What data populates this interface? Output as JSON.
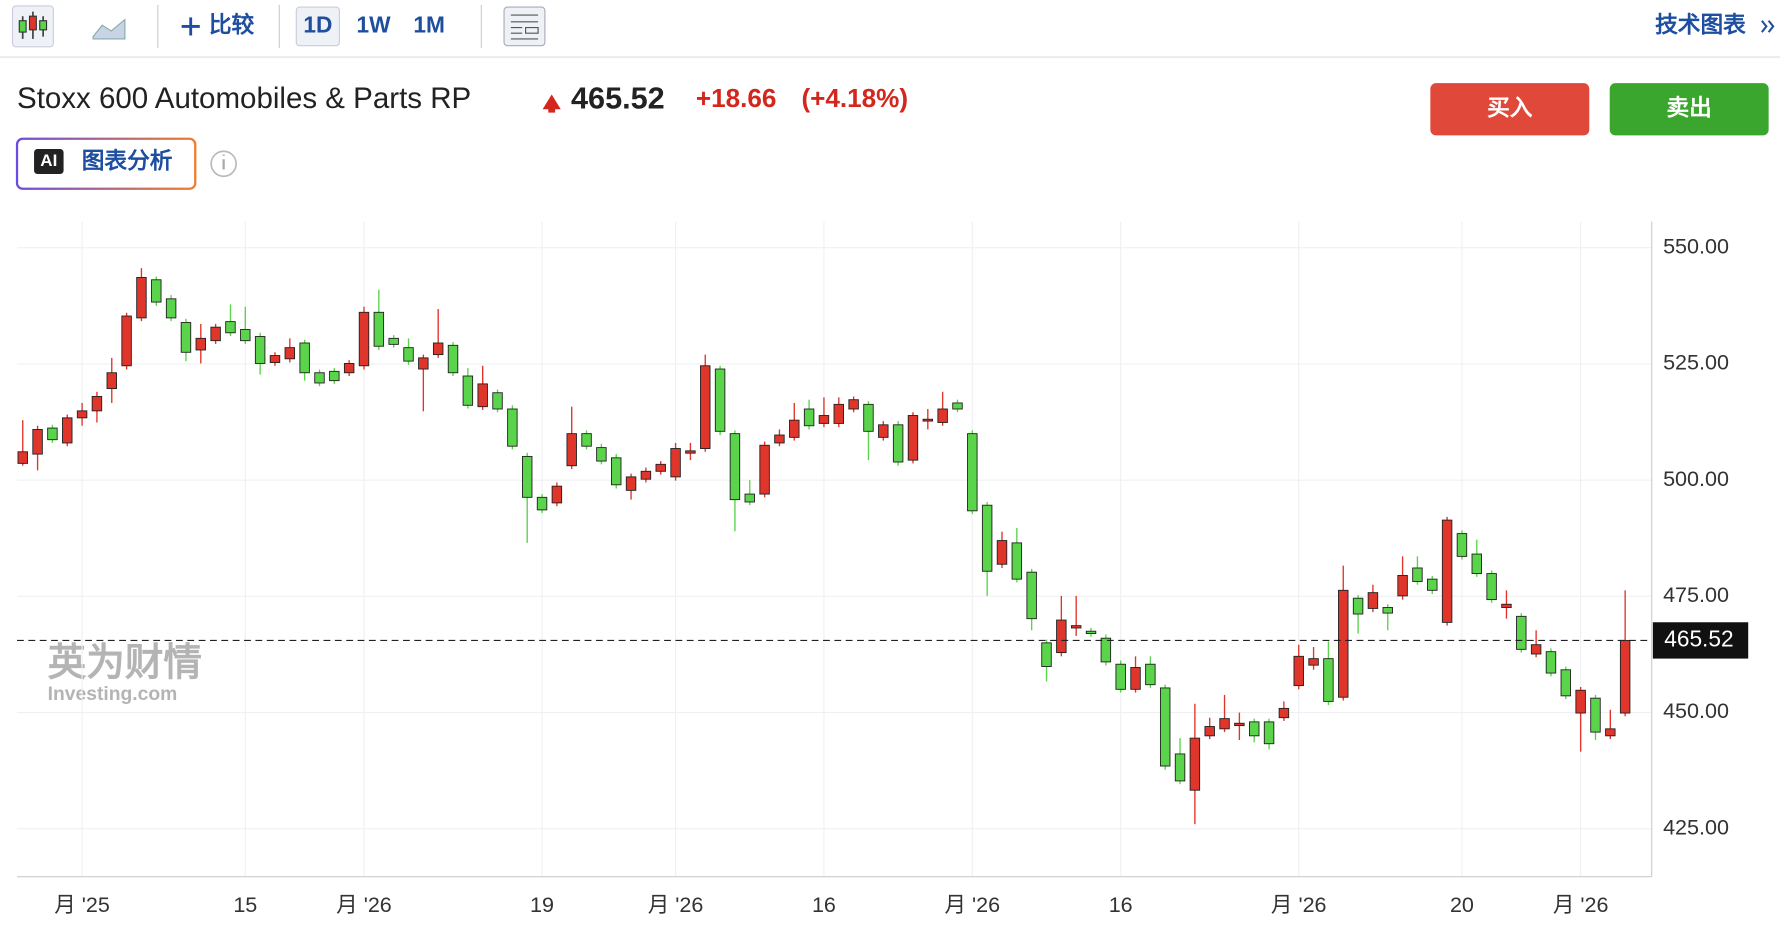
{
  "toolbar": {
    "compare": "比较",
    "intervals": [
      "1D",
      "1W",
      "1M"
    ],
    "technical": "技术图表"
  },
  "quote": {
    "name": "Stoxx 600 Automobiles & Parts RP",
    "price": 465.52,
    "change": "+18.66",
    "change_pct": "(+4.18%)"
  },
  "buttons": {
    "buy": "买入",
    "sell": "卖出",
    "ai_badge": "AI",
    "ai_label": "图表分析"
  },
  "watermark": {
    "brand": "英为财情",
    "site": "Investing.com"
  },
  "chart_data": {
    "type": "candlestick",
    "up_color": "#e0352b",
    "down_color": "#5ad44a",
    "grid": true,
    "categories": [
      null,
      null,
      null,
      null,
      "月 '25",
      null,
      null,
      null,
      null,
      null,
      null,
      null,
      null,
      null,
      null,
      "15",
      null,
      null,
      null,
      null,
      null,
      null,
      null,
      "月 '26",
      null,
      null,
      null,
      null,
      null,
      null,
      null,
      null,
      null,
      null,
      null,
      "19",
      null,
      null,
      null,
      null,
      null,
      null,
      null,
      null,
      "月 '26",
      null,
      null,
      null,
      null,
      null,
      null,
      null,
      null,
      null,
      "16",
      null,
      null,
      null,
      null,
      null,
      null,
      null,
      null,
      null,
      "月 '26",
      null,
      null,
      null,
      null,
      null,
      null,
      null,
      null,
      null,
      "16",
      null,
      null,
      null,
      null,
      null,
      null,
      null,
      null,
      null,
      null,
      null,
      "月 '26",
      null,
      null,
      null,
      null,
      null,
      null,
      null,
      null,
      null,
      null,
      "20",
      null,
      null,
      null,
      null,
      null,
      null,
      null,
      "月 '26",
      null,
      null,
      null
    ],
    "open": [
      503.6,
      505.6,
      511.2,
      508.0,
      513.4,
      514.9,
      519.7,
      524.6,
      534.9,
      543.1,
      539.0,
      533.9,
      528.0,
      530.0,
      534.1,
      532.4,
      530.9,
      525.3,
      526.1,
      529.5,
      523.1,
      523.4,
      523.1,
      524.6,
      536.1,
      530.5,
      528.5,
      523.9,
      527.0,
      529.0,
      522.4,
      515.8,
      518.8,
      515.3,
      505.1,
      496.3,
      495.1,
      503.1,
      510.0,
      507.0,
      504.8,
      497.8,
      500.2,
      501.9,
      500.7,
      505.8,
      506.8,
      523.9,
      510.0,
      497.0,
      497.0,
      508.0,
      509.2,
      515.3,
      512.2,
      512.2,
      515.3,
      516.3,
      509.2,
      511.9,
      504.3,
      512.7,
      512.4,
      516.6,
      510.0,
      494.6,
      481.9,
      486.5,
      480.2,
      465.0,
      462.9,
      468.2,
      467.5,
      466.0,
      460.4,
      455.0,
      460.4,
      455.3,
      441.1,
      433.3,
      445.0,
      446.5,
      447.2,
      448.0,
      448.0,
      448.9,
      455.8,
      460.2,
      461.6,
      453.3,
      474.6,
      472.4,
      472.6,
      475.1,
      481.1,
      478.7,
      469.4,
      488.5,
      484.1,
      479.9,
      472.6,
      470.7,
      462.6,
      463.1,
      459.2,
      449.9,
      453.1,
      445.0,
      449.9
    ],
    "high": [
      512.9,
      511.7,
      511.9,
      514.1,
      516.6,
      519.0,
      526.3,
      536.0,
      545.6,
      543.8,
      539.8,
      534.7,
      533.6,
      533.6,
      537.8,
      537.3,
      531.7,
      527.5,
      530.5,
      530.2,
      523.8,
      524.1,
      525.8,
      537.3,
      541.0,
      531.2,
      530.5,
      527.0,
      536.8,
      529.7,
      524.1,
      524.6,
      519.5,
      516.1,
      505.9,
      497.0,
      499.5,
      515.8,
      510.7,
      507.8,
      505.6,
      501.4,
      502.7,
      504.1,
      508.0,
      508.0,
      527.0,
      524.6,
      510.7,
      500.0,
      508.3,
      510.9,
      516.6,
      517.3,
      517.8,
      517.8,
      518.0,
      517.0,
      512.7,
      512.7,
      514.6,
      515.3,
      519.0,
      517.3,
      510.7,
      495.3,
      488.9,
      489.7,
      480.9,
      465.7,
      475.1,
      475.1,
      468.2,
      466.8,
      461.2,
      462.1,
      462.1,
      456.0,
      444.5,
      451.9,
      448.9,
      453.8,
      450.0,
      448.7,
      448.7,
      452.4,
      464.6,
      464.1,
      465.3,
      481.6,
      475.3,
      477.5,
      473.3,
      483.6,
      483.6,
      479.4,
      492.1,
      489.2,
      487.2,
      480.6,
      476.3,
      471.4,
      467.7,
      463.8,
      459.9,
      455.5,
      453.8,
      450.6,
      476.3
    ],
    "low": [
      503.1,
      502.1,
      508.0,
      507.3,
      511.7,
      512.4,
      516.6,
      523.8,
      534.2,
      537.5,
      534.2,
      525.6,
      525.1,
      529.3,
      531.0,
      529.3,
      522.7,
      524.6,
      525.3,
      521.4,
      520.2,
      520.7,
      522.4,
      523.8,
      528.0,
      528.5,
      524.8,
      514.8,
      526.3,
      522.4,
      515.4,
      515.1,
      514.6,
      506.6,
      486.5,
      492.9,
      494.4,
      502.4,
      506.6,
      503.4,
      498.2,
      495.8,
      499.5,
      501.2,
      499.9,
      504.3,
      506.1,
      509.7,
      489.0,
      494.6,
      496.3,
      507.3,
      508.5,
      510.9,
      511.4,
      511.4,
      514.6,
      504.3,
      508.5,
      503.1,
      503.6,
      510.9,
      511.7,
      514.6,
      492.7,
      475.1,
      481.1,
      478.0,
      467.7,
      456.7,
      462.1,
      466.5,
      466.3,
      460.1,
      454.3,
      454.3,
      455.3,
      437.7,
      434.6,
      426.0,
      444.3,
      445.8,
      444.1,
      443.6,
      442.1,
      448.2,
      455.0,
      459.2,
      451.6,
      452.6,
      467.0,
      471.6,
      467.7,
      474.3,
      477.5,
      475.5,
      468.7,
      482.9,
      479.2,
      473.6,
      470.2,
      462.9,
      461.9,
      457.8,
      452.9,
      441.6,
      444.1,
      444.3,
      449.2
    ],
    "close": [
      506.1,
      510.9,
      508.7,
      513.4,
      514.9,
      518.0,
      523.1,
      535.3,
      543.6,
      538.3,
      534.9,
      527.5,
      530.5,
      532.9,
      531.7,
      530.0,
      525.1,
      526.8,
      528.5,
      523.1,
      520.9,
      521.4,
      525.1,
      536.1,
      528.8,
      529.2,
      525.6,
      526.3,
      529.5,
      523.1,
      516.1,
      520.7,
      515.3,
      507.3,
      496.3,
      493.6,
      498.7,
      510.0,
      507.3,
      504.1,
      499.0,
      500.7,
      501.9,
      503.4,
      506.8,
      506.3,
      524.6,
      510.5,
      495.8,
      495.3,
      507.5,
      509.7,
      512.9,
      511.7,
      513.9,
      516.3,
      517.3,
      510.5,
      511.9,
      503.9,
      513.9,
      513.1,
      515.3,
      515.3,
      493.4,
      480.4,
      487.0,
      478.7,
      470.2,
      459.9,
      469.9,
      468.7,
      467.0,
      460.9,
      455.0,
      459.7,
      456.0,
      438.5,
      435.3,
      444.5,
      447.0,
      448.7,
      447.7,
      445.0,
      443.3,
      450.9,
      462.1,
      461.6,
      452.4,
      476.3,
      471.2,
      475.8,
      471.4,
      479.5,
      478.2,
      476.3,
      491.4,
      483.6,
      479.9,
      474.3,
      473.3,
      463.6,
      464.6,
      458.5,
      453.6,
      454.8,
      445.8,
      446.5,
      465.52
    ],
    "ylim": [
      414.7,
      555.6
    ],
    "yticks": [
      {
        "value": 425,
        "label": "425.00"
      },
      {
        "value": 450,
        "label": "450.00"
      },
      {
        "value": 475,
        "label": "475.00"
      },
      {
        "value": 500,
        "label": "500.00"
      },
      {
        "value": 525,
        "label": "525.00"
      },
      {
        "value": 550,
        "label": "550.00"
      }
    ]
  }
}
